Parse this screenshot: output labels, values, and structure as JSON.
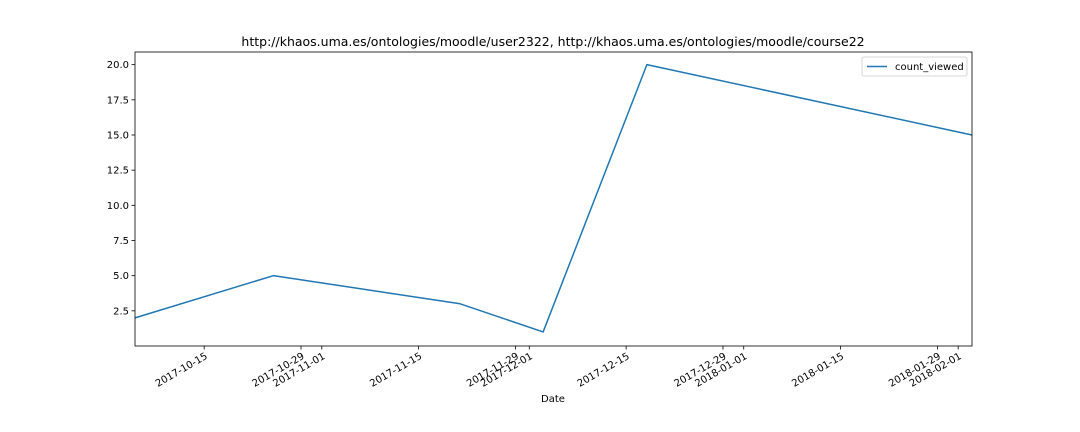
{
  "chart_data": {
    "type": "line",
    "title": "http://khaos.uma.es/ontologies/moodle/user2322, http://khaos.uma.es/ontologies/moodle/course22",
    "xlabel": "Date",
    "ylabel": "",
    "x_type": "date",
    "xlim": [
      "2017-10-05",
      "2018-02-03"
    ],
    "ylim": [
      0.0,
      20.9
    ],
    "x_ticks": [
      "2017-10-15",
      "2017-10-29",
      "2017-11-01",
      "2017-11-15",
      "2017-11-29",
      "2017-12-01",
      "2017-12-15",
      "2017-12-29",
      "2018-01-01",
      "2018-01-15",
      "2018-01-29",
      "2018-02-01"
    ],
    "y_ticks": [
      "2.5",
      "5.0",
      "7.5",
      "10.0",
      "12.5",
      "15.0",
      "17.5",
      "20.0"
    ],
    "legend_position": "top-right",
    "grid": false,
    "series": [
      {
        "name": "count_viewed",
        "color": "#1f77b4",
        "x": [
          "2017-10-05",
          "2017-10-25",
          "2017-11-21",
          "2017-12-03",
          "2017-12-18",
          "2018-02-03"
        ],
        "y": [
          2,
          5,
          3,
          1,
          20,
          15
        ]
      }
    ]
  }
}
